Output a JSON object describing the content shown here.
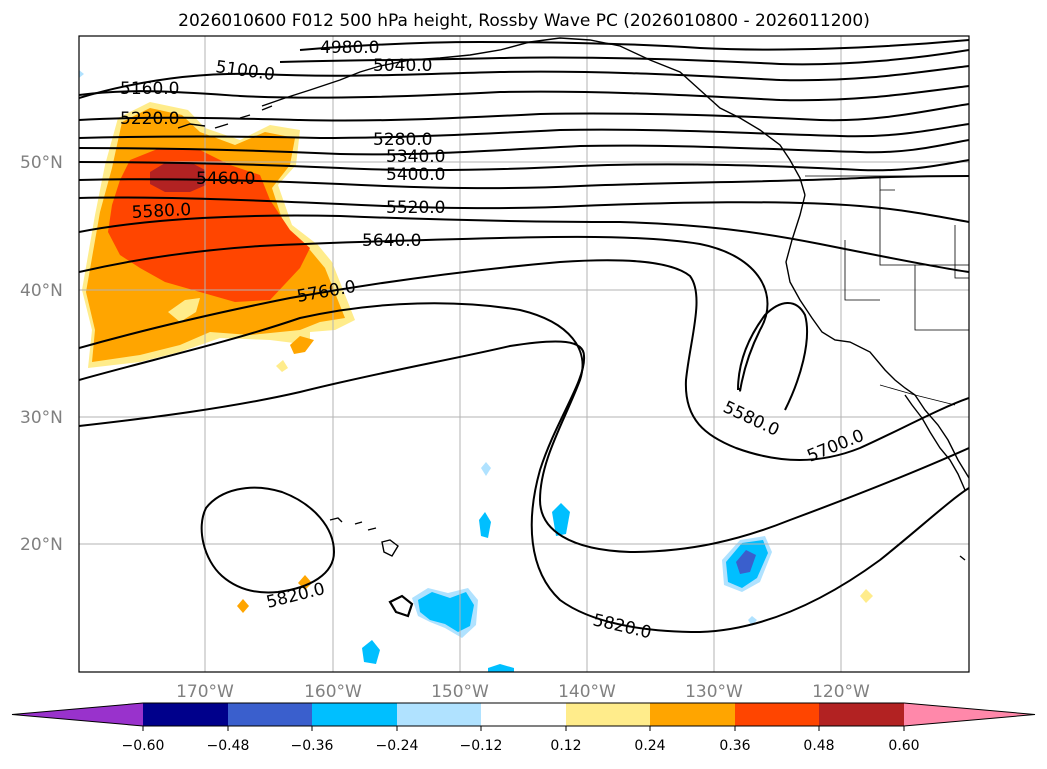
{
  "title": "2026010600 F012 500 hPa height, Rossby Wave PC (2026010800 - 2026011200)",
  "map": {
    "lon_labels": [
      "170°W",
      "160°W",
      "150°W",
      "140°W",
      "130°W",
      "120°W"
    ],
    "lat_labels": [
      "50°N",
      "40°N",
      "30°N",
      "20°N"
    ],
    "contour_labels": [
      "4980.0",
      "5040.0",
      "5100.0",
      "5160.0",
      "5220.0",
      "5280.0",
      "5340.0",
      "5400.0",
      "5460.0",
      "5520.0",
      "5580.0",
      "5640.0",
      "5760.0",
      "5580.0",
      "5700.0",
      "5820.0",
      "5820.0"
    ],
    "label_color": "#808080"
  },
  "colorbar": {
    "ticks": [
      "−0.60",
      "−0.48",
      "−0.36",
      "−0.24",
      "−0.12",
      "0.12",
      "0.24",
      "0.36",
      "0.48",
      "0.60"
    ],
    "colors": [
      "#9932cc",
      "#00008b",
      "#3a5fcd",
      "#00bfff",
      "#b0e2ff",
      "#ffffff",
      "#ffec8b",
      "#ffa500",
      "#ff4500",
      "#b22222",
      "#ff88aa"
    ]
  }
}
